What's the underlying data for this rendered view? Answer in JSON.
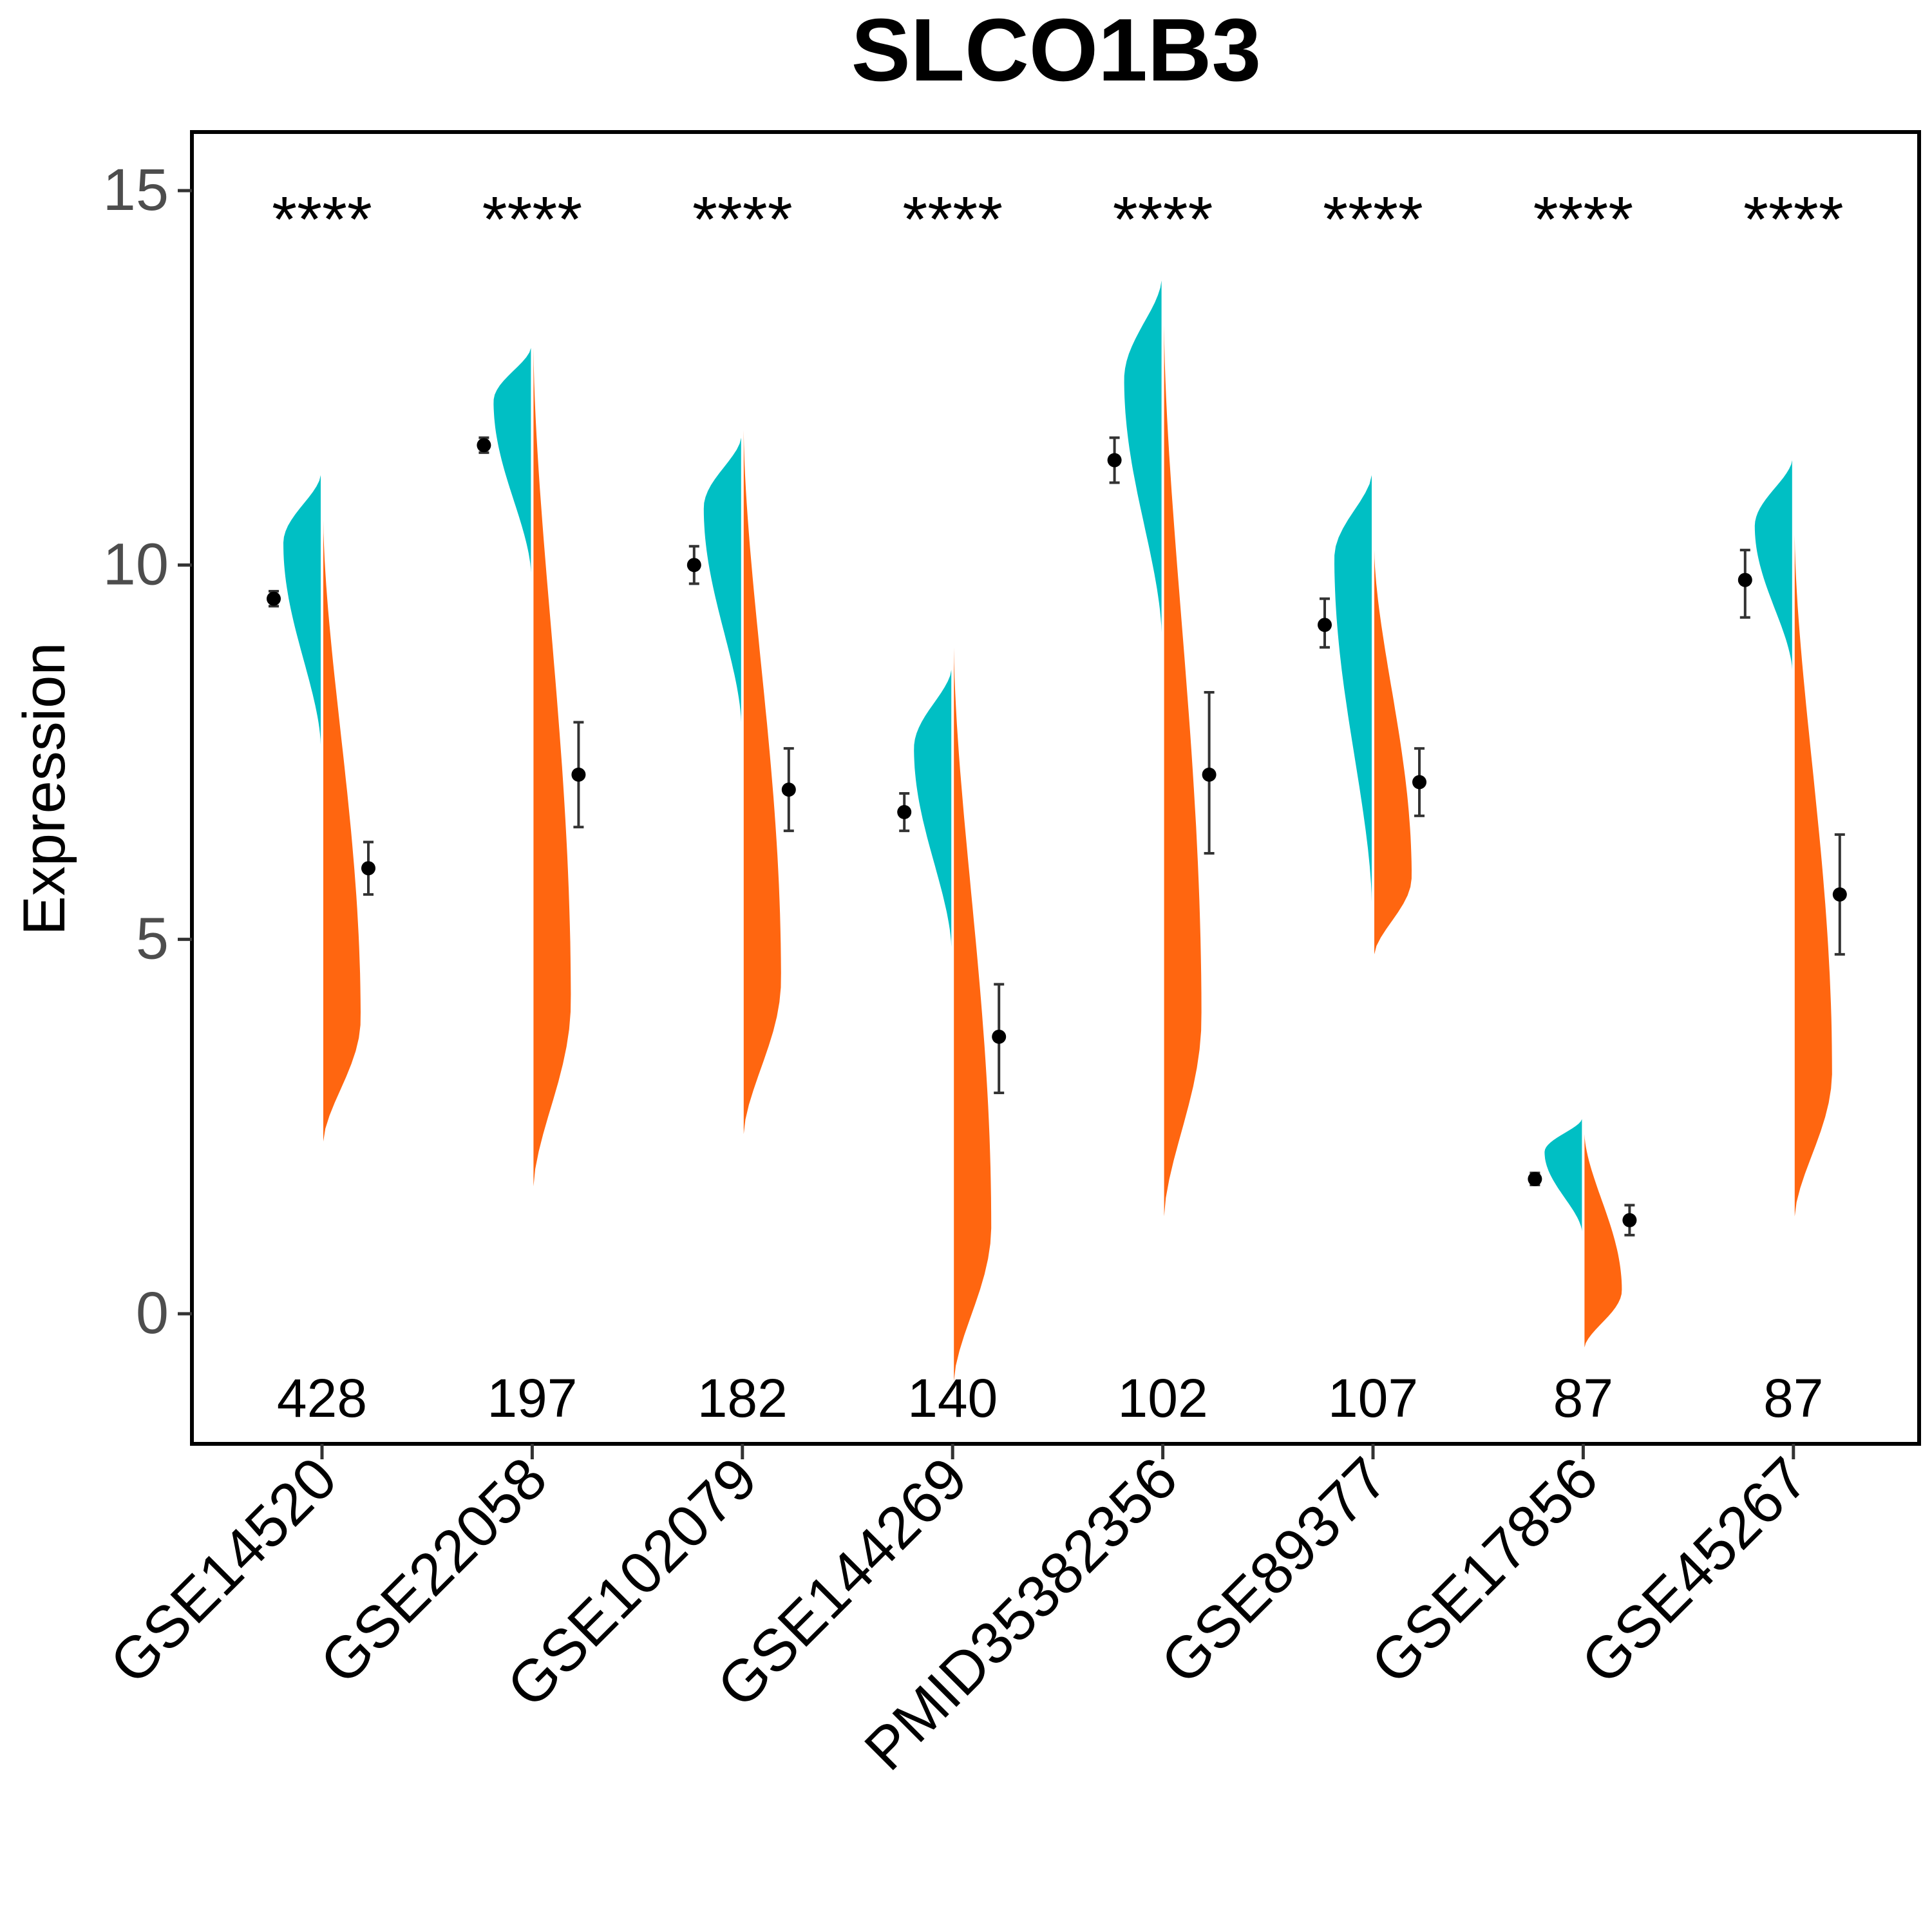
{
  "chart_data": {
    "type": "split-violin",
    "title": "SLCO1B3",
    "ylabel": "Expression",
    "xlabel": "",
    "ylim": [
      -1.8,
      15.9
    ],
    "yticks": [
      0,
      5,
      10,
      15
    ],
    "ytick_labels": [
      "0",
      "5",
      "10",
      "15"
    ],
    "grid": false,
    "legend": "none",
    "colors": {
      "group1": "#00BFC4",
      "group2": "#FF6610",
      "points": "#000000",
      "errorbars": "#333333"
    },
    "categories": [
      "GSE14520",
      "GSE22058",
      "GSE102079",
      "GSE144269",
      "PMID35382356",
      "GSE89377",
      "GSE17856",
      "GSE45267"
    ],
    "sample_counts": [
      "428",
      "197",
      "182",
      "140",
      "102",
      "107",
      "87",
      "87"
    ],
    "significance": [
      "****",
      "****",
      "****",
      "****",
      "****",
      "****",
      "****",
      "****"
    ],
    "series": [
      {
        "color": "#00BFC4",
        "mean": [
          9.55,
          11.6,
          10.0,
          6.7,
          11.4,
          9.2,
          1.8,
          9.8
        ],
        "error_low": [
          9.45,
          11.5,
          9.75,
          6.45,
          11.1,
          8.9,
          1.72,
          9.3
        ],
        "error_high": [
          9.65,
          11.7,
          10.25,
          6.95,
          11.7,
          9.55,
          1.88,
          10.2
        ],
        "violin_range": [
          [
            7.6,
            11.2
          ],
          [
            9.9,
            12.9
          ],
          [
            7.9,
            11.7
          ],
          [
            4.9,
            8.6
          ],
          [
            9.1,
            13.8
          ],
          [
            5.5,
            11.2
          ],
          [
            1.1,
            2.6
          ],
          [
            8.6,
            11.4
          ]
        ]
      },
      {
        "color": "#FF6610",
        "mean": [
          5.95,
          7.2,
          7.0,
          3.7,
          7.2,
          7.1,
          1.25,
          5.6
        ],
        "error_low": [
          5.6,
          6.5,
          6.45,
          2.95,
          6.15,
          6.65,
          1.05,
          4.8
        ],
        "error_high": [
          6.3,
          7.9,
          7.55,
          4.4,
          8.3,
          7.55,
          1.45,
          6.4
        ],
        "violin_range": [
          [
            2.3,
            10.6
          ],
          [
            1.7,
            12.9
          ],
          [
            2.4,
            11.8
          ],
          [
            -0.9,
            8.9
          ],
          [
            1.3,
            13.2
          ],
          [
            4.8,
            10.2
          ],
          [
            -0.45,
            2.4
          ],
          [
            1.3,
            10.4
          ]
        ]
      }
    ]
  }
}
